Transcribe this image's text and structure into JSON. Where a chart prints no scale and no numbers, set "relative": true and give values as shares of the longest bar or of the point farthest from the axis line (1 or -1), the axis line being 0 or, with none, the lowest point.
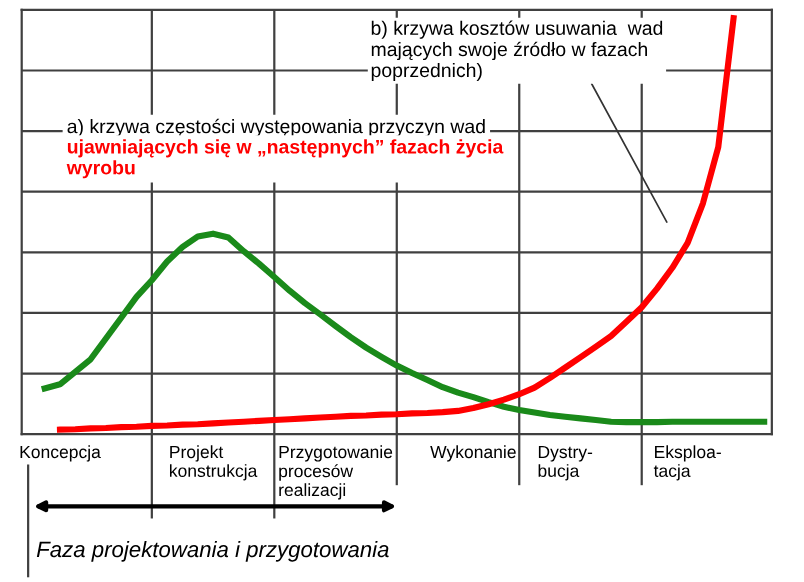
{
  "chart_data": {
    "type": "line",
    "relative": true,
    "grid": true,
    "marker": "none",
    "line_style": "solid",
    "categories": [
      null,
      null,
      "Koncepcja",
      null,
      null,
      null,
      null,
      null,
      null,
      null,
      null,
      null,
      "Projekt\nkonstrukcja",
      null,
      null,
      null,
      null,
      null,
      null,
      null,
      "Przygotowanie\nprocesów\nrealizacji",
      null,
      null,
      null,
      null,
      null,
      null,
      null,
      null,
      "Wykonanie",
      null,
      null,
      null,
      null,
      null,
      "Dystry-\nbucja",
      null,
      null,
      null,
      null,
      null,
      null,
      null,
      "Eksploa-\ntacja",
      null,
      null,
      null,
      null,
      null
    ],
    "series": [
      {
        "color": "#1a8a1a",
        "values": [
          null,
          0.11,
          0.12,
          0.15,
          0.18,
          0.23,
          0.28,
          0.33,
          0.37,
          0.415,
          0.45,
          0.475,
          0.482,
          0.473,
          0.44,
          0.41,
          0.378,
          0.345,
          0.315,
          0.288,
          0.26,
          0.233,
          0.208,
          0.186,
          0.165,
          0.147,
          0.13,
          0.113,
          0.1,
          0.089,
          0.077,
          0.066,
          0.058,
          0.052,
          0.046,
          0.042,
          0.038,
          0.034,
          0.03,
          0.029,
          0.029,
          0.029,
          0.03,
          0.03,
          0.03,
          0.03,
          0.03,
          0.03,
          0.03
        ]
      },
      {
        "color": "#ff0000",
        "values": [
          null,
          null,
          0.011,
          0.012,
          0.014,
          0.015,
          0.017,
          0.018,
          0.02,
          0.021,
          0.023,
          0.024,
          0.026,
          0.028,
          0.03,
          0.032,
          0.034,
          0.036,
          0.038,
          0.04,
          0.042,
          0.044,
          0.045,
          0.047,
          0.048,
          0.05,
          0.051,
          0.053,
          0.056,
          0.063,
          0.072,
          0.083,
          0.096,
          0.112,
          0.135,
          0.16,
          0.185,
          0.21,
          0.236,
          0.27,
          0.305,
          0.35,
          0.4,
          0.46,
          0.555,
          0.69,
          1.0,
          null,
          null
        ]
      }
    ],
    "annotations": [
      "a) krzywa częstości występowania przyczyn wad",
      "ujawniających się w „następnych” fazach życia\nwyrobu",
      "b) krzywa kosztów usuwania  wad\nmających swoje źródło w fazach\npoprzednich)",
      "Faza projektowania i przygotowania"
    ]
  }
}
